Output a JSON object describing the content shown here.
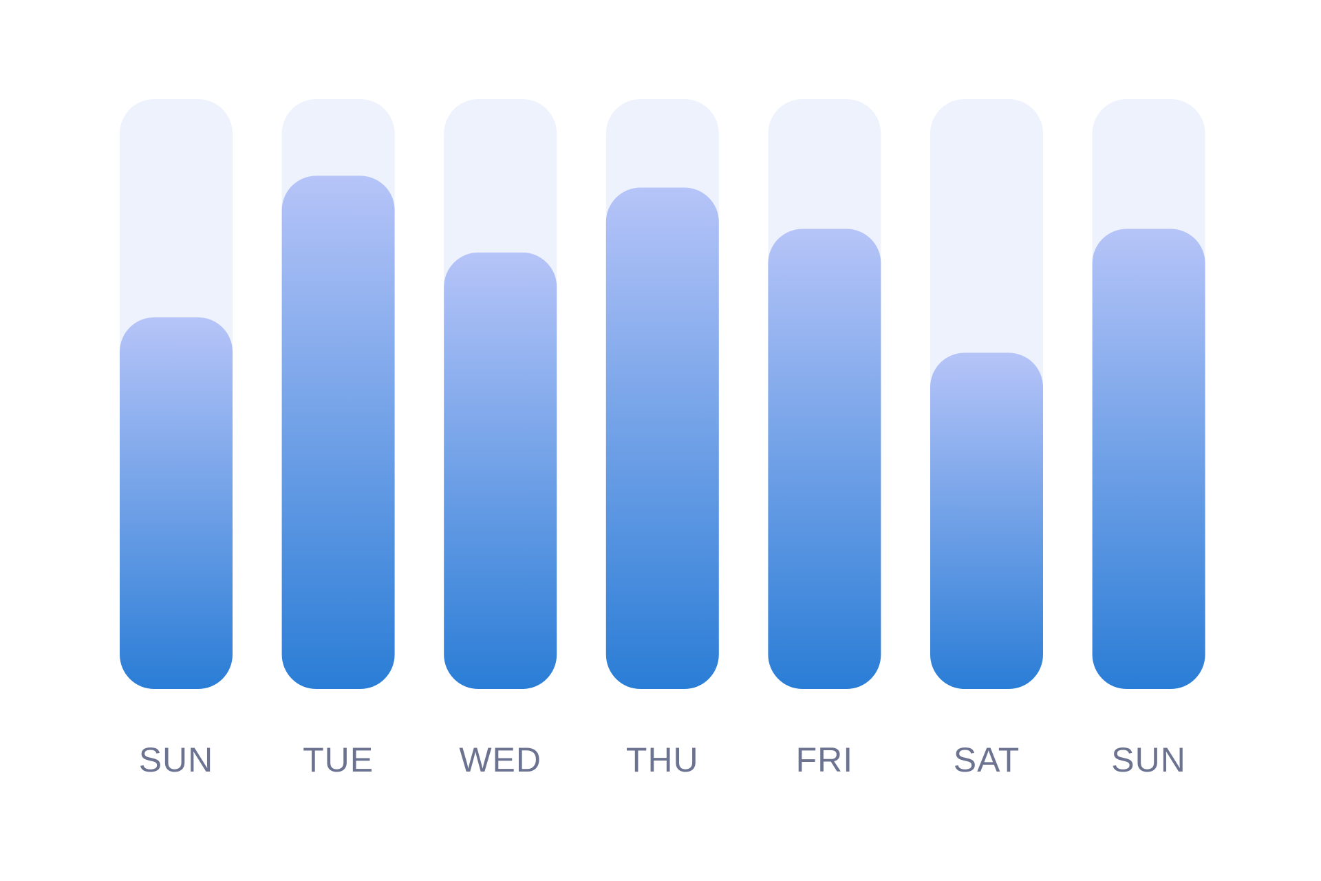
{
  "chart_data": {
    "type": "bar",
    "categories": [
      "SUN",
      "TUE",
      "WED",
      "THU",
      "FRI",
      "SAT",
      "SUN"
    ],
    "values": [
      63,
      87,
      74,
      85,
      78,
      57,
      78
    ],
    "ylim": [
      0,
      100
    ],
    "color": "#2a7dd6",
    "track_color": "#edf2fc"
  }
}
